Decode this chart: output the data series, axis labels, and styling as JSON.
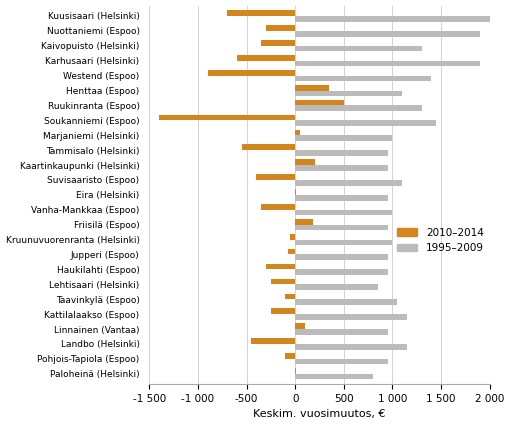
{
  "categories": [
    "Kuusisaari (Helsinki)",
    "Nuottaniemi (Espoo)",
    "Kaivopuisto (Helsinki)",
    "Karhusaari (Helsinki)",
    "Westend (Espoo)",
    "Henttaa (Espoo)",
    "Ruukinranta (Espoo)",
    "Soukanniemi (Espoo)",
    "Marjaniemi (Helsinki)",
    "Tammisalo (Helsinki)",
    "Kaartinkaupunki (Helsinki)",
    "Suvisaaristo (Espoo)",
    "Eira (Helsinki)",
    "Vanha-Mankkaa (Espoo)",
    "Friisilä (Espoo)",
    "Kruunuvuorenranta (Helsinki)",
    "Jupperi (Espoo)",
    "Haukilahti (Espoo)",
    "Lehtisaari (Helsinki)",
    "Taavinkylä (Espoo)",
    "Kattilalaakso (Espoo)",
    "Linnainen (Vantaa)",
    "Landbo (Helsinki)",
    "Pohjois-Tapiola (Espoo)",
    "Paloheinä (Helsinki)"
  ],
  "values_2010_2014": [
    -700,
    -300,
    -350,
    -600,
    -900,
    350,
    500,
    -1400,
    50,
    -550,
    200,
    -400,
    10,
    -350,
    180,
    -50,
    -70,
    -300,
    -250,
    -100,
    -250,
    100,
    -450,
    -100,
    10
  ],
  "values_1995_2009": [
    2000,
    1900,
    1300,
    1900,
    1400,
    1100,
    1300,
    1450,
    1000,
    950,
    950,
    1100,
    950,
    1000,
    950,
    1000,
    950,
    950,
    850,
    1050,
    1150,
    950,
    1150,
    950,
    800
  ],
  "color_2010_2014": "#d4861e",
  "color_1995_2009": "#bbbbbb",
  "xlabel": "Keskim. vuosimuutos, €",
  "xlim": [
    -1500,
    2000
  ],
  "xticks": [
    -1500,
    -1000,
    -500,
    0,
    500,
    1000,
    1500,
    2000
  ],
  "xtick_labels": [
    "-1 500",
    "-1 000",
    "-500",
    "0",
    "500",
    "1 000",
    "1 500",
    "2 000"
  ],
  "legend_2010_2014": "2010–2014",
  "legend_1995_2009": "1995–2009",
  "bar_height": 0.38,
  "figsize": [
    5.1,
    4.25
  ],
  "dpi": 100
}
